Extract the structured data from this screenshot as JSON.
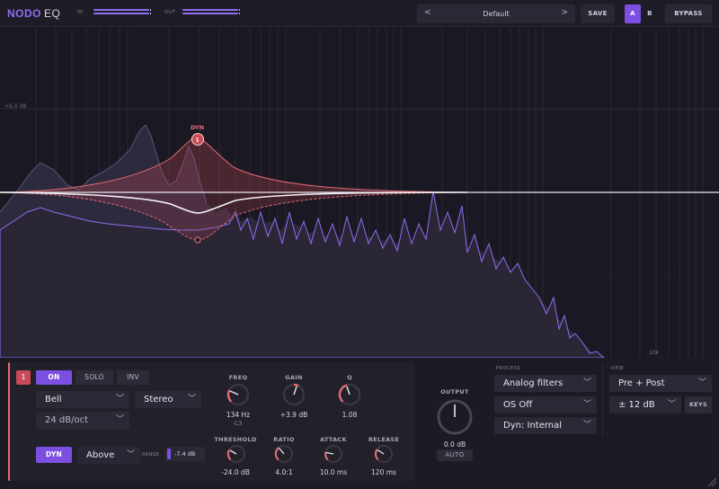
{
  "header": {
    "brand": "NODO",
    "product": "EQ",
    "in_label": "IN",
    "out_label": "OUT",
    "preset_prev": "<",
    "preset_name": "Default",
    "preset_next": ">",
    "save_label": "SAVE",
    "a_label": "A",
    "b_label": "B",
    "bypass_label": "BYPASS",
    "active_slot": "A"
  },
  "display": {
    "grid_label_top": "+6.0 dB",
    "freq_label": "10k",
    "node_label": "DYN",
    "node_number": "1"
  },
  "band": {
    "number": "1",
    "on_label": "ON",
    "solo_label": "SOLO",
    "inv_label": "INV",
    "type": "Bell",
    "stereo": "Stereo",
    "slope": "24 dB/oct",
    "dyn_label": "DYN",
    "dyn_mode": "Above",
    "range_label": "RANGE",
    "range_value": "-7.4 dB",
    "freq_label": "FREQ",
    "freq_value": "134 Hz",
    "freq_note": "C3",
    "gain_label": "GAIN",
    "gain_value": "+3.9 dB",
    "q_label": "Q",
    "q_value": "1.08",
    "threshold_label": "THRESHOLD",
    "threshold_value": "-24.0 dB",
    "ratio_label": "RATIO",
    "ratio_value": "4.0:1",
    "attack_label": "ATTACK",
    "attack_value": "10.0 ms",
    "release_label": "RELEASE",
    "release_value": "120 ms"
  },
  "output": {
    "label": "OUTPUT",
    "value": "0.0 dB",
    "auto_label": "AUTO"
  },
  "process": {
    "label": "PROCESS",
    "filters": "Analog filters",
    "oversampling": "OS Off",
    "dyn": "Dyn: Internal"
  },
  "view": {
    "label": "VIEW",
    "mode": "Pre + Post",
    "range": "± 12 dB",
    "keys_label": "KEYS"
  },
  "colors": {
    "accent": "#7b4fe0",
    "band": "#e06a74",
    "spectrum": "#8f6df0"
  }
}
